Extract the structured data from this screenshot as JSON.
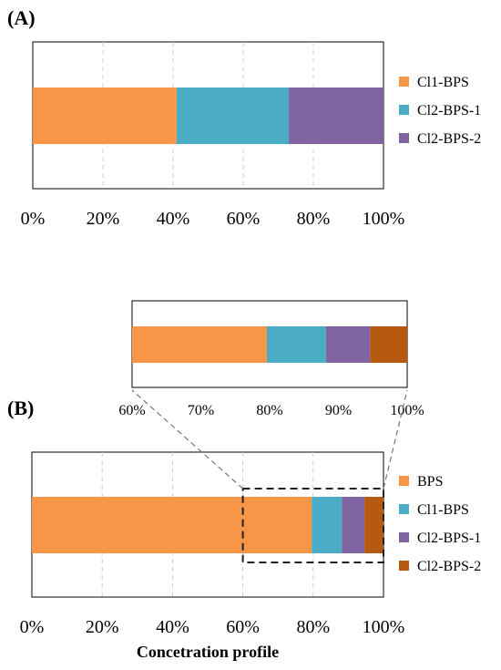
{
  "chart_data": [
    {
      "type": "bar",
      "orientation": "horizontal",
      "stacked": true,
      "panel": "(A)",
      "xlabel": "",
      "xlim": [
        0,
        100
      ],
      "x_ticks": [
        "0%",
        "20%",
        "40%",
        "60%",
        "80%",
        "100%"
      ],
      "grid": "vertical-dashed",
      "legend_position": "right",
      "series": [
        {
          "name": "Cl1-BPS",
          "value": 41,
          "color": "#F79646"
        },
        {
          "name": "Cl2-BPS-1",
          "value": 32,
          "color": "#4BACC6"
        },
        {
          "name": "Cl2-BPS-2",
          "value": 27,
          "color": "#8064A2"
        }
      ]
    },
    {
      "type": "bar",
      "orientation": "horizontal",
      "stacked": true,
      "panel": "(B)",
      "xlabel": "Concetration profile",
      "xlim": [
        0,
        100
      ],
      "x_ticks": [
        "0%",
        "20%",
        "40%",
        "60%",
        "80%",
        "100%"
      ],
      "grid": "vertical-dashed",
      "legend_position": "right",
      "series": [
        {
          "name": "BPS",
          "value": 79.6,
          "color": "#F79646"
        },
        {
          "name": "Cl1-BPS",
          "value": 8.6,
          "color": "#4BACC6"
        },
        {
          "name": "Cl2-BPS-1",
          "value": 6.4,
          "color": "#8064A2"
        },
        {
          "name": "Cl2-BPS-2",
          "value": 5.4,
          "color": "#B65A11"
        }
      ]
    },
    {
      "type": "bar",
      "orientation": "horizontal",
      "stacked": true,
      "panel": "inset",
      "xlim": [
        60,
        100
      ],
      "x_ticks": [
        "60%",
        "70%",
        "80%",
        "90%",
        "100%"
      ],
      "zoom_of": "(B)"
    }
  ]
}
